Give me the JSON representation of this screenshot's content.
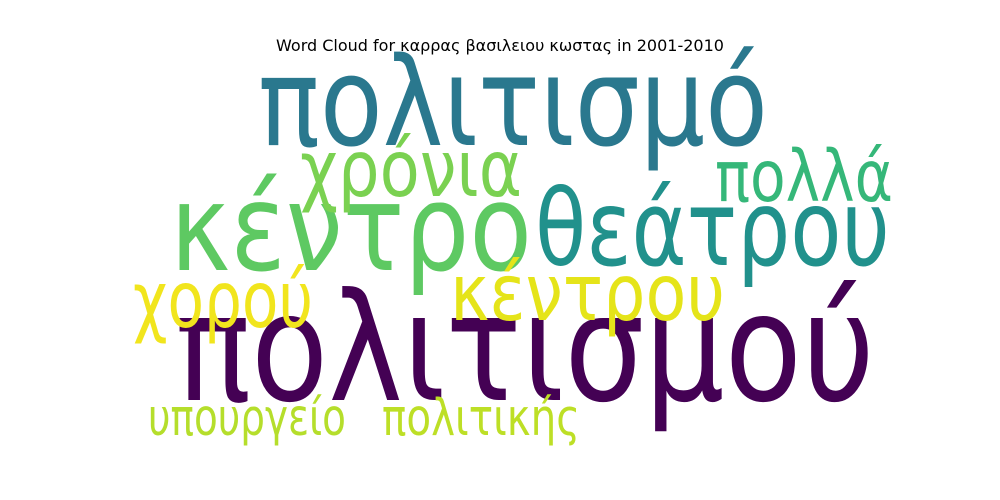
{
  "chart_data": {
    "type": "wordcloud",
    "title": "Word Cloud for καρρας βασιλειου κωστας in 2001-2010",
    "words": [
      {
        "text": "πολιτισμού",
        "weight": 1.0,
        "color": "#440154"
      },
      {
        "text": "πολιτισμό",
        "weight": 0.82,
        "color": "#2a788e"
      },
      {
        "text": "κέντρο",
        "weight": 0.8,
        "color": "#5ec962"
      },
      {
        "text": "θεάτρου",
        "weight": 0.7,
        "color": "#21918c"
      },
      {
        "text": "χρόνια",
        "weight": 0.52,
        "color": "#7ad151"
      },
      {
        "text": "πολλά",
        "weight": 0.47,
        "color": "#35b779"
      },
      {
        "text": "χορού",
        "weight": 0.52,
        "color": "#f1e51d"
      },
      {
        "text": "κέντρου",
        "weight": 0.52,
        "color": "#e5e419"
      },
      {
        "text": "υπουργείο",
        "weight": 0.34,
        "color": "#b5de2b"
      },
      {
        "text": "πολιτικής",
        "weight": 0.34,
        "color": "#bddf26"
      }
    ]
  }
}
